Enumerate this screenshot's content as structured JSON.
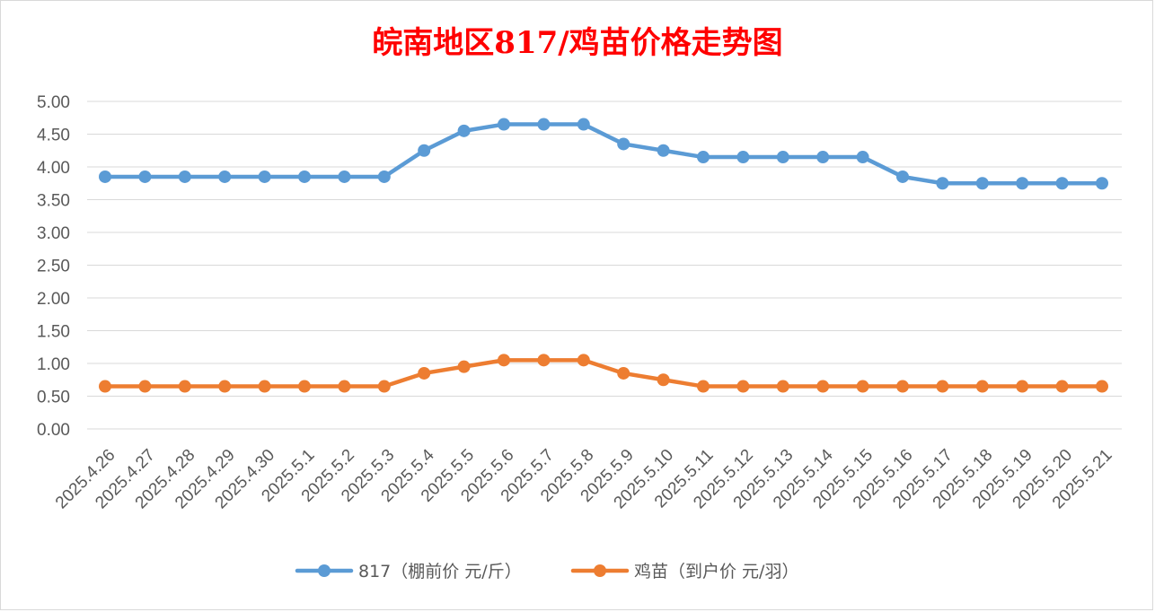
{
  "chart_data": {
    "type": "line",
    "title": "皖南地区817/鸡苗价格走势图",
    "xlabel": "",
    "ylabel": "",
    "ylim": [
      0,
      5
    ],
    "yticks": [
      "0.00",
      "0.50",
      "1.00",
      "1.50",
      "2.00",
      "2.50",
      "3.00",
      "3.50",
      "4.00",
      "4.50",
      "5.00"
    ],
    "categories": [
      "2025.4.26",
      "2025.4.27",
      "2025.4.28",
      "2025.4.29",
      "2025.4.30",
      "2025.5.1",
      "2025.5.2",
      "2025.5.3",
      "2025.5.4",
      "2025.5.5",
      "2025.5.6",
      "2025.5.7",
      "2025.5.8",
      "2025.5.9",
      "2025.5.10",
      "2025.5.11",
      "2025.5.12",
      "2025.5.13",
      "2025.5.14",
      "2025.5.15",
      "2025.5.16",
      "2025.5.17",
      "2025.5.18",
      "2025.5.19",
      "2025.5.20",
      "2025.5.21"
    ],
    "series": [
      {
        "name": "817（棚前价 元/斤）",
        "color": "#5b9bd5",
        "values": [
          3.85,
          3.85,
          3.85,
          3.85,
          3.85,
          3.85,
          3.85,
          3.85,
          4.25,
          4.55,
          4.65,
          4.65,
          4.65,
          4.35,
          4.25,
          4.15,
          4.15,
          4.15,
          4.15,
          4.15,
          3.85,
          3.75,
          3.75,
          3.75,
          3.75,
          3.75
        ]
      },
      {
        "name": "鸡苗（到户价 元/羽）",
        "color": "#ed7d31",
        "values": [
          0.65,
          0.65,
          0.65,
          0.65,
          0.65,
          0.65,
          0.65,
          0.65,
          0.85,
          0.95,
          1.05,
          1.05,
          1.05,
          0.85,
          0.75,
          0.65,
          0.65,
          0.65,
          0.65,
          0.65,
          0.65,
          0.65,
          0.65,
          0.65,
          0.65,
          0.65
        ]
      }
    ],
    "grid": true,
    "legend_position": "bottom"
  }
}
